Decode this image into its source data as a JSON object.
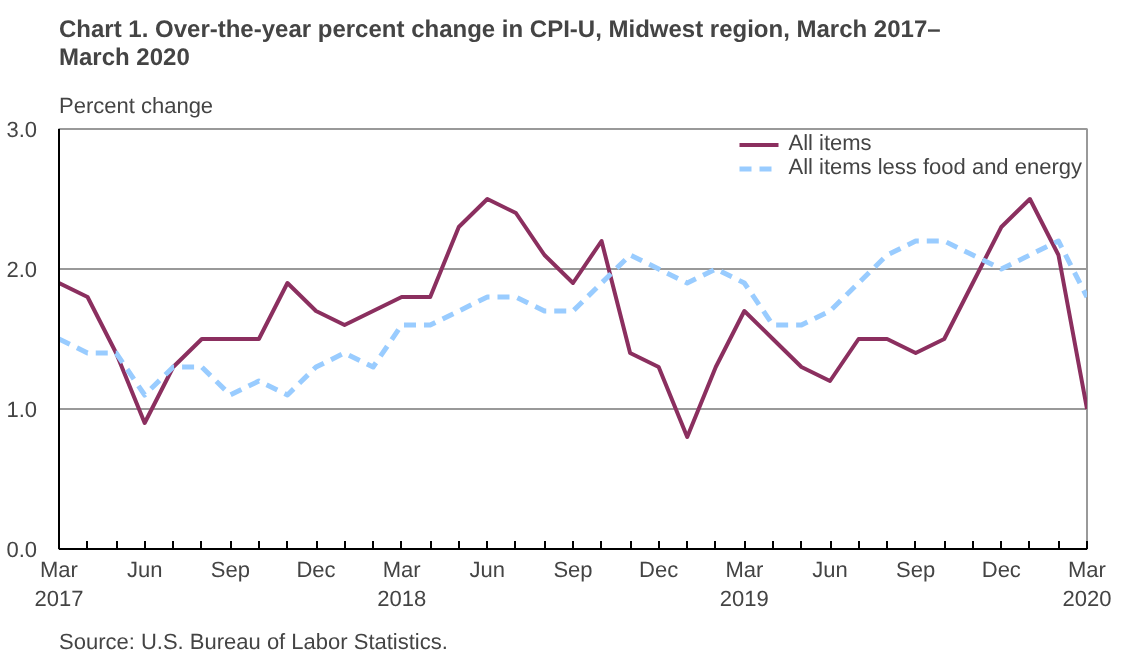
{
  "chart_data": {
    "type": "line",
    "title": "Chart 1. Over-the-year percent change in CPI-U, Midwest region, March 2017–\nMarch 2020",
    "ylabel": "Percent change",
    "categories": [
      "Mar\n2017",
      null,
      null,
      "Jun",
      null,
      null,
      "Sep",
      null,
      null,
      "Dec",
      null,
      null,
      "Mar\n2018",
      null,
      null,
      "Jun",
      null,
      null,
      "Sep",
      null,
      null,
      "Dec",
      null,
      null,
      "Mar\n2019",
      null,
      null,
      "Jun",
      null,
      null,
      "Sep",
      null,
      null,
      "Dec",
      null,
      null,
      "Mar\n2020"
    ],
    "series": [
      {
        "name": "All items",
        "color": "#8b2f5f",
        "line_style": "solid",
        "values": [
          1.9,
          1.8,
          1.4,
          0.9,
          1.3,
          1.5,
          1.5,
          1.5,
          1.9,
          1.7,
          1.6,
          1.7,
          1.8,
          1.8,
          2.3,
          2.5,
          2.4,
          2.1,
          1.9,
          2.2,
          1.4,
          1.3,
          0.8,
          1.3,
          1.7,
          1.5,
          1.3,
          1.2,
          1.5,
          1.5,
          1.4,
          1.5,
          1.9,
          2.3,
          2.5,
          2.1,
          1.0
        ]
      },
      {
        "name": "All items less food and energy",
        "color": "#99ccff",
        "line_style": "dashed",
        "values": [
          1.5,
          1.4,
          1.4,
          1.1,
          1.3,
          1.3,
          1.1,
          1.2,
          1.1,
          1.3,
          1.4,
          1.3,
          1.6,
          1.6,
          1.7,
          1.8,
          1.8,
          1.7,
          1.7,
          1.9,
          2.1,
          2.0,
          1.9,
          2.0,
          1.9,
          1.6,
          1.6,
          1.7,
          1.9,
          2.1,
          2.2,
          2.2,
          2.1,
          2.0,
          2.1,
          2.2,
          1.8
        ]
      }
    ],
    "ylim": [
      0,
      3
    ],
    "yticks": [
      {
        "value": 0,
        "label": "0.0"
      },
      {
        "value": 1,
        "label": "1.0"
      },
      {
        "value": 2,
        "label": "2.0"
      },
      {
        "value": 3,
        "label": "3.0"
      }
    ],
    "grid": "y",
    "legend": "top right",
    "marker": "none",
    "annotations": [
      "Source: U.S. Bureau of Labor Statistics."
    ]
  }
}
